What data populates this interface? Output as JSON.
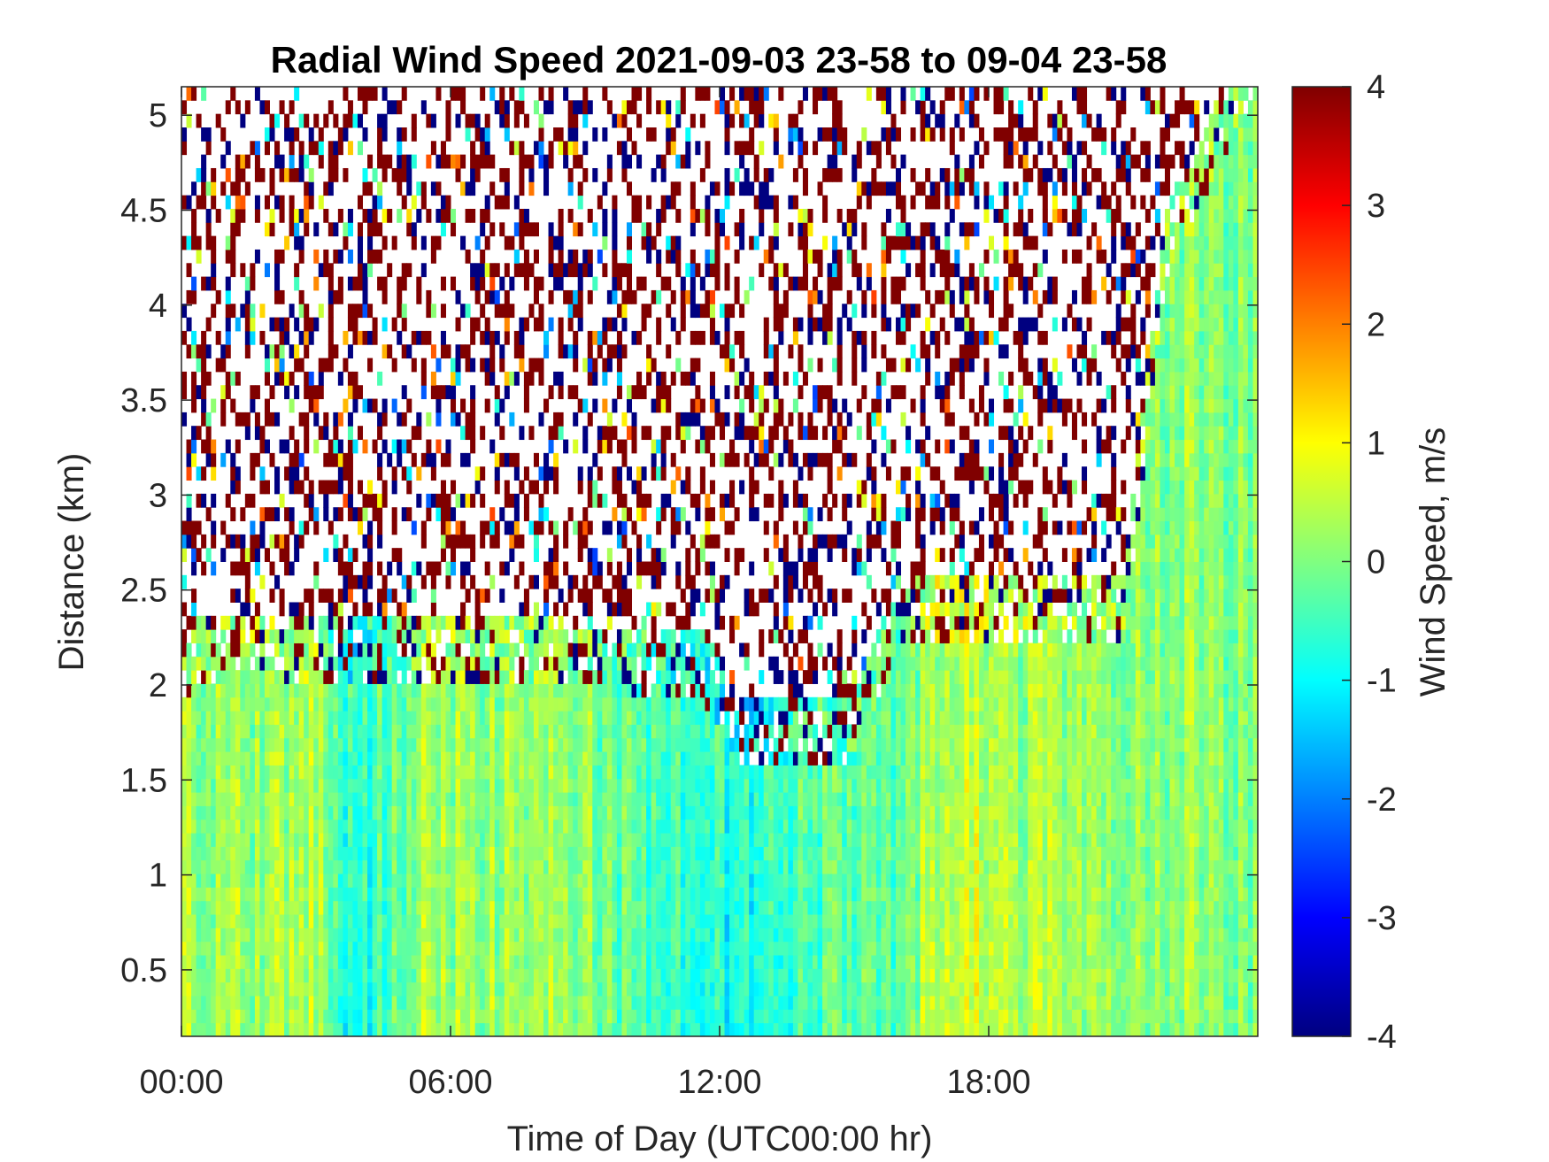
{
  "chart_data": {
    "type": "heatmap",
    "title": "Radial Wind Speed 2021-09-03 23-58 to 09-04 23-58",
    "xlabel": "Time of Day (UTC00:00 hr)",
    "ylabel": "Distance (km)",
    "colorbar_label": "Wind Speed, m/s",
    "colormap": "jet",
    "x_ticks": [
      "00:00",
      "06:00",
      "12:00",
      "18:00"
    ],
    "x_tick_hours": [
      0,
      6,
      12,
      18
    ],
    "xlim_hours": [
      0,
      24
    ],
    "y_ticks": [
      "0.5",
      "1",
      "1.5",
      "2",
      "2.5",
      "3",
      "3.5",
      "4",
      "4.5",
      "5"
    ],
    "y_tick_values": [
      0.5,
      1,
      1.5,
      2,
      2.5,
      3,
      3.5,
      4,
      4.5,
      5
    ],
    "ylim_km": [
      0.15,
      5.15
    ],
    "color_ticks": [
      "-4",
      "-3",
      "-2",
      "-1",
      "0",
      "1",
      "2",
      "3",
      "4"
    ],
    "color_tick_values": [
      -4,
      -3,
      -2,
      -1,
      0,
      1,
      2,
      3,
      4
    ],
    "clim": [
      -4,
      4
    ],
    "grid": false,
    "valid_data_top_km": [
      {
        "hour": 0,
        "km": 1.95
      },
      {
        "hour": 1,
        "km": 2.05
      },
      {
        "hour": 11.5,
        "km": 1.95
      },
      {
        "hour": 12,
        "km": 1.8
      },
      {
        "hour": 12.5,
        "km": 1.55
      },
      {
        "hour": 14,
        "km": 1.6
      },
      {
        "hour": 15,
        "km": 1.55
      },
      {
        "hour": 16,
        "km": 2.25
      },
      {
        "hour": 21,
        "km": 2.25
      },
      {
        "hour": 22,
        "km": 4.2
      },
      {
        "hour": 24,
        "km": 5.15
      }
    ],
    "mean_speed_by_hour": [
      {
        "hour": 0,
        "ms": 0.2
      },
      {
        "hour": 3,
        "ms": 0.4
      },
      {
        "hour": 3.7,
        "ms": -1.2
      },
      {
        "hour": 5.5,
        "ms": 0.3
      },
      {
        "hour": 9,
        "ms": 0.1
      },
      {
        "hour": 12.5,
        "ms": -1.3
      },
      {
        "hour": 14,
        "ms": -0.4
      },
      {
        "hour": 16,
        "ms": -0.2
      },
      {
        "hour": 17,
        "ms": 0.8
      },
      {
        "hour": 20,
        "ms": 0.2
      },
      {
        "hour": 24,
        "ms": 0.1
      }
    ]
  }
}
